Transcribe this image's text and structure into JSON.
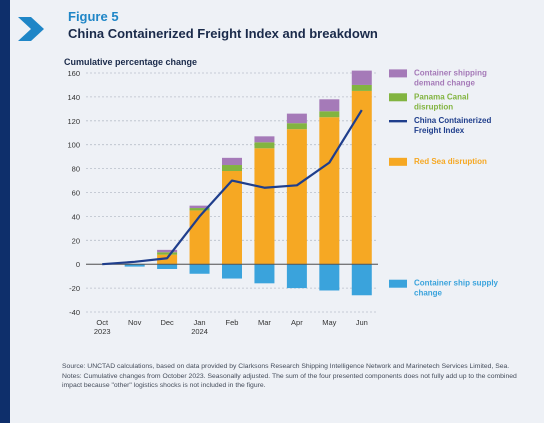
{
  "figure": {
    "label": "Figure 5",
    "title": "China Containerized Freight Index and breakdown"
  },
  "notes": {
    "source": "Source: UNCTAD calculations, based on data provided by Clarksons Research Shipping Intelligence Network and Marinetech Services Limited, Sea.",
    "note": "Notes: Cumulative changes from October 2023. Seasonally adjusted. The sum of the four presented components does not fully add up to the combined impact because \"other\" logistics shocks is not included in the figure."
  },
  "colors": {
    "red_sea": "#f6a823",
    "panama": "#82b440",
    "demand": "#a57ab8",
    "supply": "#3aa3dc",
    "index_line": "#1f3e8c",
    "accent": "#1f86c7",
    "navy": "#0e2f6b"
  },
  "chart_data": {
    "type": "bar",
    "ylabel": "Cumulative percentage change",
    "ylim": [
      -40,
      160
    ],
    "yticks": [
      -40,
      -20,
      0,
      20,
      40,
      60,
      80,
      100,
      120,
      140,
      160
    ],
    "categories": [
      "Oct 2023",
      "Nov",
      "Dec",
      "Jan 2024",
      "Feb",
      "Mar",
      "Apr",
      "May",
      "Jun"
    ],
    "category_lines": [
      [
        "Oct",
        "2023"
      ],
      [
        "Nov",
        ""
      ],
      [
        "Dec",
        ""
      ],
      [
        "Jan",
        "2024"
      ],
      [
        "Feb",
        ""
      ],
      [
        "Mar",
        ""
      ],
      [
        "Apr",
        ""
      ],
      [
        "May",
        ""
      ],
      [
        "Jun",
        ""
      ]
    ],
    "stacked_series": [
      {
        "name": "Red Sea disruption",
        "color_key": "red_sea",
        "values": [
          0,
          0,
          8,
          45,
          78,
          97,
          113,
          123,
          145
        ]
      },
      {
        "name": "Panama Canal disruption",
        "color_key": "panama",
        "values": [
          0,
          0,
          2,
          2,
          5,
          5,
          5,
          5,
          5
        ]
      },
      {
        "name": "Container shipping demand change",
        "color_key": "demand",
        "values": [
          0,
          0,
          2,
          2,
          6,
          5,
          8,
          10,
          12
        ]
      }
    ],
    "negative_series": {
      "name": "Container ship supply change",
      "color_key": "supply",
      "values": [
        0,
        -2,
        -4,
        -8,
        -12,
        -16,
        -20,
        -22,
        -26
      ]
    },
    "line_series": {
      "name": "China Containerized Freight Index",
      "color_key": "index_line",
      "values": [
        0,
        2,
        5,
        40,
        70,
        64,
        66,
        85,
        129
      ]
    },
    "legend": [
      {
        "text": "Container shipping demand change",
        "lines": [
          "Container shipping",
          "demand change"
        ],
        "color_key": "demand",
        "type": "bar"
      },
      {
        "text": "Panama Canal disruption",
        "lines": [
          "Panama Canal",
          "disruption"
        ],
        "color_key": "panama",
        "type": "bar"
      },
      {
        "text": "China Containerized Freight Index",
        "lines": [
          "China Containerized",
          "Freight Index"
        ],
        "color_key": "index_line",
        "type": "line"
      },
      {
        "text": "Red Sea disruption",
        "lines": [
          "Red Sea disruption"
        ],
        "color_key": "red_sea",
        "type": "bar"
      },
      {
        "text": "Container ship supply change",
        "lines": [
          "Container ship supply",
          "change"
        ],
        "color_key": "supply",
        "type": "bar"
      }
    ],
    "legend_placement": "right",
    "grid": true
  }
}
